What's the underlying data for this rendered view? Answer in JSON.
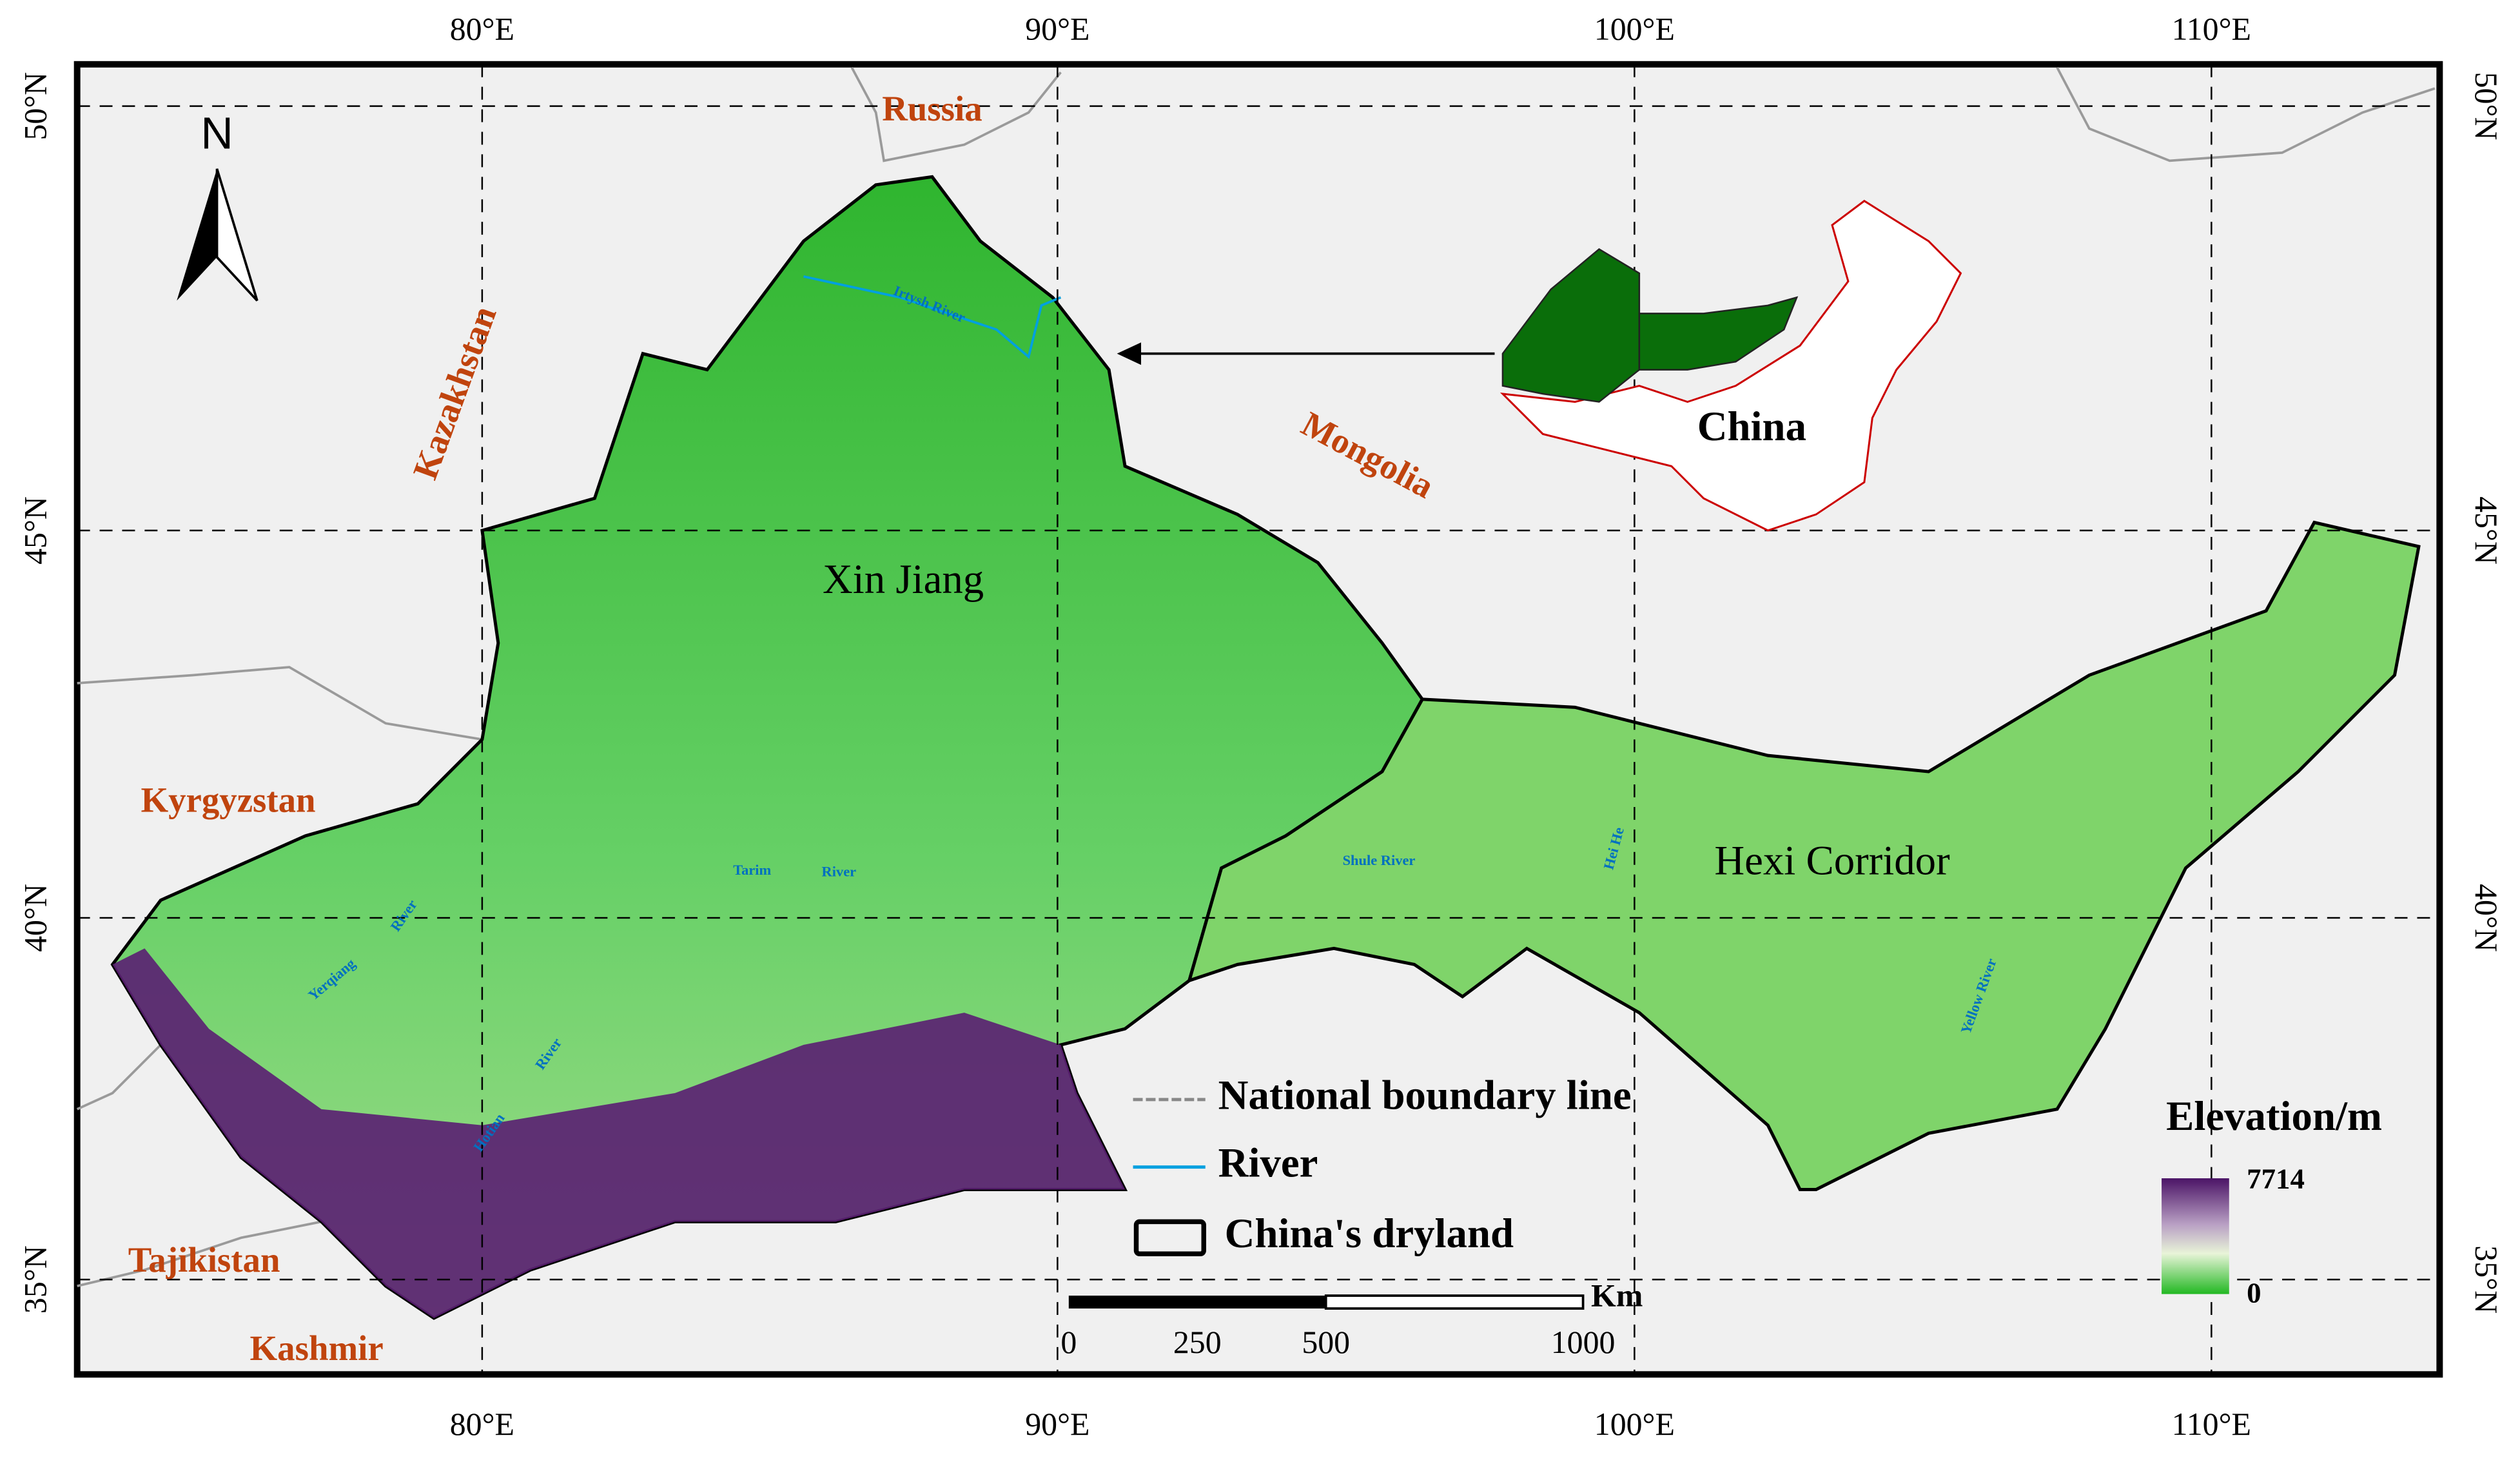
{
  "map": {
    "longitude_labels": [
      "80°E",
      "90°E",
      "100°E",
      "110°E"
    ],
    "latitude_labels": [
      "50°N",
      "45°N",
      "40°N",
      "35°N"
    ],
    "north_arrow": "N",
    "countries": [
      "Russia",
      "Kazakhstan",
      "Mongolia",
      "Kyrgyzstan",
      "Tajikistan",
      "Kashmir"
    ],
    "regions": [
      "Xin Jiang",
      "Hexi Corridor"
    ],
    "inset_label": "China",
    "rivers": [
      "Irtysh River",
      "Tarim",
      "River",
      "Shule River",
      "Hei He",
      "Yerqiang",
      "River",
      "Hotian",
      "River",
      "Yellow River"
    ],
    "legend": [
      "National boundary line",
      "River",
      "China's dryland"
    ],
    "scale_bar": {
      "unit": "Km",
      "labels": [
        0,
        250,
        500,
        1000
      ]
    },
    "elevation_legend": {
      "title": "Elevation/m",
      "max": 7714,
      "min": 0
    }
  }
}
